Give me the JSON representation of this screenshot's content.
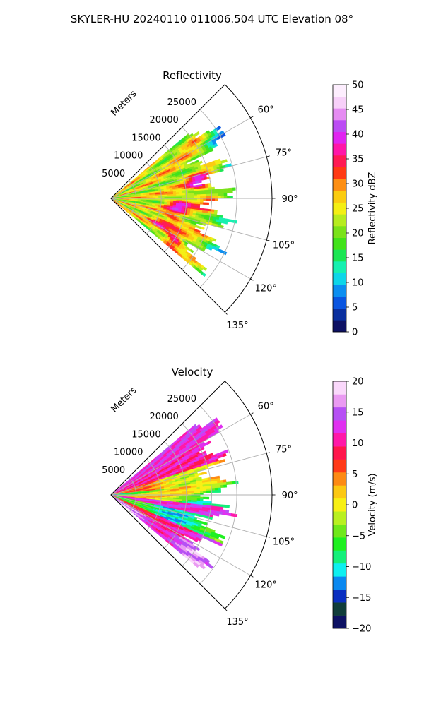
{
  "figure_title": "SKYLER-HU  20240110  011006.504 UTC Elevation 08°",
  "chart_data": [
    {
      "type": "heatmap",
      "projection": "polar-sector",
      "title": "Reflectivity",
      "radial_label": "Meters",
      "radial_ticks": [
        5000,
        10000,
        15000,
        20000,
        25000
      ],
      "radial_tick_labels": [
        "5000",
        "10000",
        "15000",
        "20000",
        "25000"
      ],
      "radial_range": [
        0,
        32000
      ],
      "angle_ticks": [
        60,
        75,
        90,
        105,
        120,
        135
      ],
      "angle_tick_labels": [
        "60°",
        "75°",
        "90°",
        "105°",
        "120°",
        "135°"
      ],
      "angle_range_deg": [
        45,
        135
      ],
      "data_extent_deg": [
        50,
        130
      ],
      "data_range_m": [
        0,
        26000
      ],
      "grid": true,
      "colorbar": {
        "label": "Reflectivity dBZ",
        "range": [
          0,
          50
        ],
        "ticks": [
          0,
          5,
          10,
          15,
          20,
          25,
          30,
          35,
          40,
          45,
          50
        ],
        "tick_labels": [
          "0",
          "5",
          "10",
          "15",
          "20",
          "25",
          "30",
          "35",
          "40",
          "45",
          "50"
        ],
        "stops": [
          "#0d1163",
          "#0a2f9e",
          "#0a55e0",
          "#0c8ef0",
          "#0ed6e8",
          "#16f0b0",
          "#1ce654",
          "#41e21a",
          "#7ae21a",
          "#b6ec1f",
          "#f4ef14",
          "#fbcc10",
          "#fd8f14",
          "#ff3a14",
          "#ff1a54",
          "#ff16a8",
          "#e024f0",
          "#bb4cf4",
          "#e58cf2",
          "#f7d0f9",
          "#fdeefe"
        ]
      },
      "summary": "Dominant 20-30 dBZ (yellow/orange) echoes with scattered cores of 35-45 dBZ (red/magenta) between roughly 70° and 125°, weaker green returns near the outer edge."
    },
    {
      "type": "heatmap",
      "projection": "polar-sector",
      "title": "Velocity",
      "radial_label": "Meters",
      "radial_ticks": [
        5000,
        10000,
        15000,
        20000,
        25000
      ],
      "radial_tick_labels": [
        "5000",
        "10000",
        "15000",
        "20000",
        "25000"
      ],
      "radial_range": [
        0,
        32000
      ],
      "angle_ticks": [
        60,
        75,
        90,
        105,
        120,
        135
      ],
      "angle_tick_labels": [
        "60°",
        "75°",
        "90°",
        "105°",
        "120°",
        "135°"
      ],
      "angle_range_deg": [
        45,
        135
      ],
      "data_extent_deg": [
        50,
        130
      ],
      "data_range_m": [
        0,
        26000
      ],
      "grid": true,
      "colorbar": {
        "label": "Velocity (m/s)",
        "range": [
          -20,
          20
        ],
        "ticks": [
          -20,
          -15,
          -10,
          -5,
          0,
          5,
          10,
          15,
          20
        ],
        "tick_labels": [
          "−20",
          "−15",
          "−10",
          "−5",
          "0",
          "5",
          "10",
          "15",
          "20"
        ],
        "stops": [
          "#0d1163",
          "#103d3a",
          "#0a2fc0",
          "#0a88f0",
          "#0ef0f0",
          "#14f07a",
          "#1ef020",
          "#6fe81a",
          "#b9f020",
          "#f8f014",
          "#fcc812",
          "#fd8a14",
          "#ff3a18",
          "#ff164c",
          "#ff18a8",
          "#e030f0",
          "#b650f4",
          "#ea9af2",
          "#fad8fb"
        ]
      },
      "summary": "Banded radial velocity: +10 to +20 m/s (red/magenta) near 60-75° and along 110-128°, negative -5 to -10 m/s (green/cyan) bands near 85-95° and 105-115°."
    }
  ]
}
